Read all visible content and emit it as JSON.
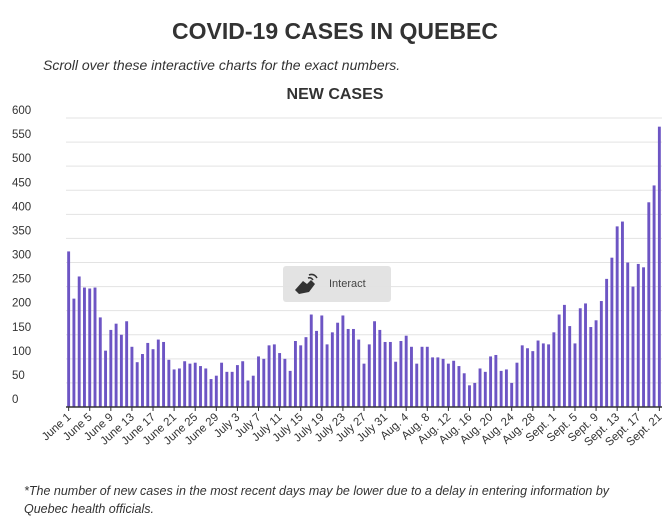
{
  "header": {
    "title": "COVID-19 CASES IN QUEBEC",
    "subtitle": "Scroll over these interactive charts for the exact numbers."
  },
  "interact_label": "Interact",
  "footnote": "*The number of new cases in the most recent days may be lower due to a delay in entering information by Quebec health officials.",
  "colors": {
    "bar": "#6d55c4",
    "grid": "#e3e3e3",
    "axis": "#333333"
  },
  "chart_data": {
    "type": "bar",
    "title": "NEW CASES",
    "xlabel": "",
    "ylabel": "",
    "ylim": [
      0,
      600
    ],
    "yticks": [
      0,
      50,
      100,
      150,
      200,
      250,
      300,
      350,
      400,
      450,
      500,
      550,
      600
    ],
    "grid": true,
    "x_tick_labels": [
      "June 1",
      "June 5",
      "June 9",
      "June 13",
      "June 17",
      "June 21",
      "June 25",
      "June 29",
      "July 3",
      "July 7",
      "July 11",
      "July 15",
      "July 19",
      "July 23",
      "July 27",
      "July 31",
      "Aug. 4",
      "Aug. 8",
      "Aug. 12",
      "Aug. 16",
      "Aug. 20",
      "Aug. 24",
      "Aug. 28",
      "Sept. 1",
      "Sept. 5",
      "Sept. 9",
      "Sept. 13",
      "Sept. 17",
      "Sept. 21"
    ],
    "tick_every": 4,
    "values": [
      323,
      225,
      271,
      248,
      246,
      248,
      186,
      117,
      160,
      173,
      150,
      178,
      125,
      93,
      110,
      133,
      120,
      140,
      135,
      98,
      78,
      80,
      95,
      90,
      92,
      85,
      80,
      58,
      65,
      92,
      73,
      73,
      87,
      95,
      55,
      65,
      105,
      100,
      128,
      130,
      112,
      100,
      75,
      137,
      128,
      145,
      192,
      158,
      190,
      130,
      155,
      175,
      190,
      162,
      162,
      140,
      90,
      130,
      178,
      160,
      135,
      135,
      94,
      137,
      148,
      125,
      90,
      125,
      125,
      103,
      103,
      100,
      90,
      96,
      85,
      70,
      45,
      50,
      80,
      73,
      105,
      108,
      75,
      78,
      50,
      92,
      128,
      122,
      116,
      138,
      132,
      130,
      155,
      192,
      212,
      168,
      132,
      205,
      215,
      166,
      180,
      220,
      266,
      310,
      375,
      385,
      300,
      250,
      297,
      290,
      425,
      460,
      582
    ]
  }
}
